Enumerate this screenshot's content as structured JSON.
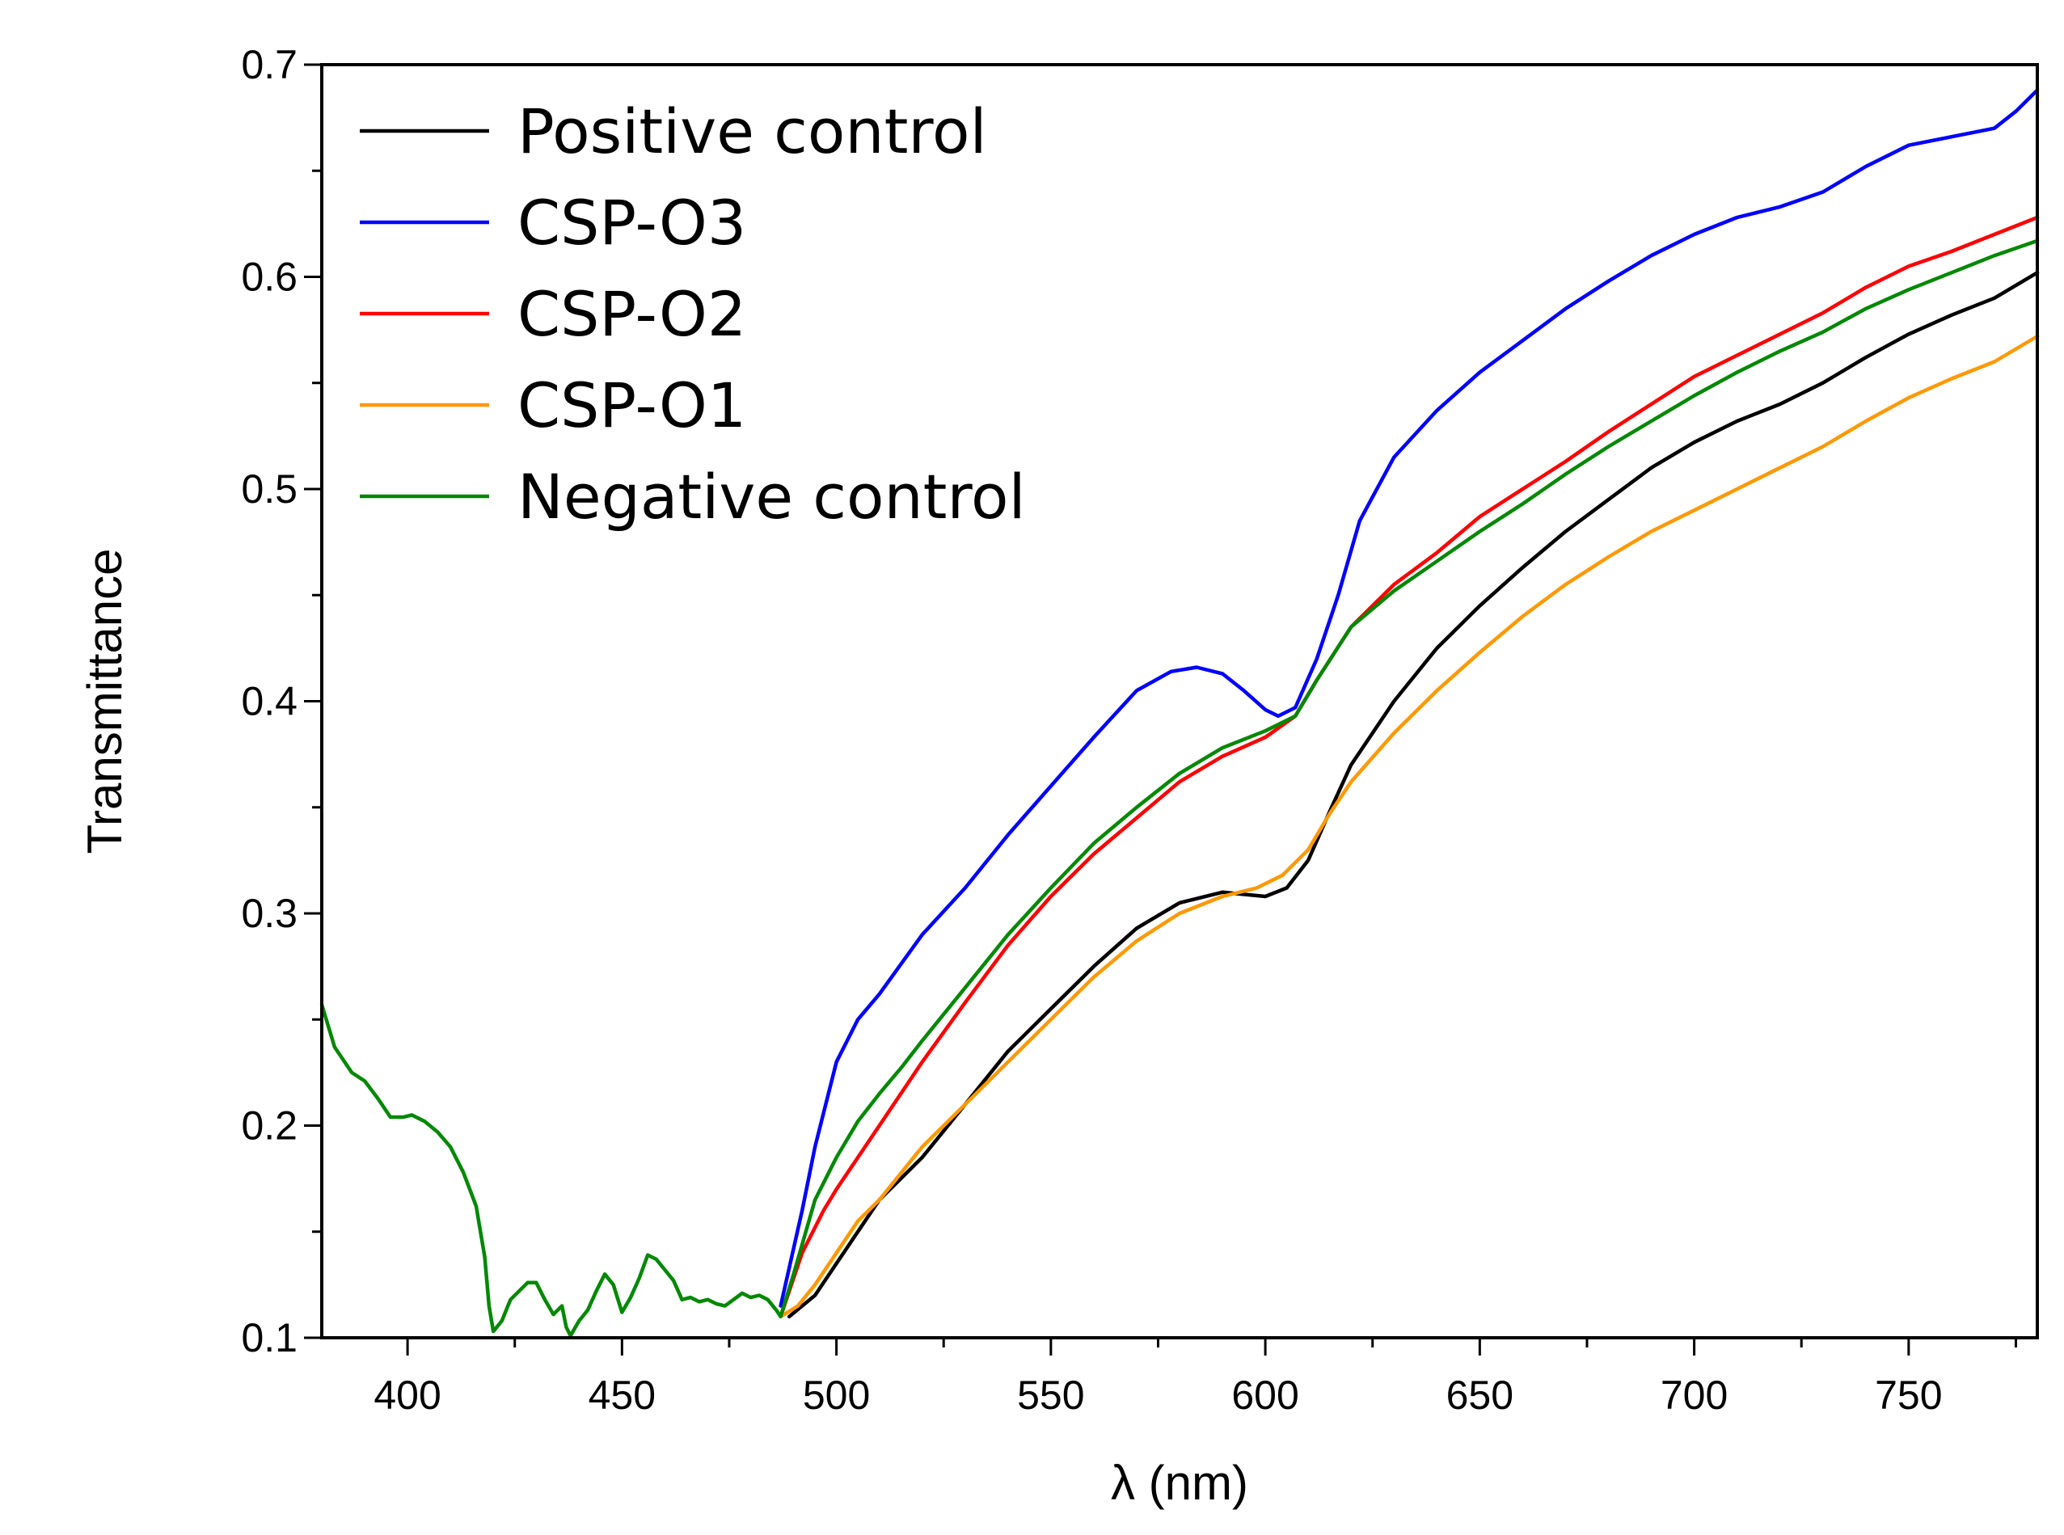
{
  "chart_data": {
    "type": "line",
    "title": "",
    "xlabel": "λ (nm)",
    "ylabel": "Transmittance",
    "xlim": [
      380,
      780
    ],
    "ylim": [
      0.1,
      0.7
    ],
    "xticks": [
      400,
      450,
      500,
      550,
      600,
      650,
      700,
      750
    ],
    "yticks": [
      0.1,
      0.2,
      0.3,
      0.4,
      0.5,
      0.6,
      0.7
    ],
    "grid": false,
    "legend_position": "top-left",
    "series": [
      {
        "name": "Positive control",
        "color": "#000000",
        "points": [
          [
            489,
            0.11
          ],
          [
            495,
            0.12
          ],
          [
            500,
            0.135
          ],
          [
            505,
            0.15
          ],
          [
            510,
            0.165
          ],
          [
            520,
            0.185
          ],
          [
            530,
            0.21
          ],
          [
            540,
            0.235
          ],
          [
            550,
            0.255
          ],
          [
            560,
            0.275
          ],
          [
            570,
            0.293
          ],
          [
            580,
            0.305
          ],
          [
            590,
            0.31
          ],
          [
            600,
            0.308
          ],
          [
            605,
            0.312
          ],
          [
            610,
            0.325
          ],
          [
            615,
            0.348
          ],
          [
            620,
            0.37
          ],
          [
            630,
            0.4
          ],
          [
            640,
            0.425
          ],
          [
            650,
            0.445
          ],
          [
            660,
            0.463
          ],
          [
            670,
            0.48
          ],
          [
            680,
            0.495
          ],
          [
            690,
            0.51
          ],
          [
            700,
            0.522
          ],
          [
            710,
            0.532
          ],
          [
            720,
            0.54
          ],
          [
            730,
            0.55
          ],
          [
            740,
            0.562
          ],
          [
            750,
            0.573
          ],
          [
            760,
            0.582
          ],
          [
            770,
            0.59
          ],
          [
            780,
            0.602
          ]
        ]
      },
      {
        "name": "CSP-O3",
        "color": "#0000ff",
        "points": [
          [
            487,
            0.115
          ],
          [
            492,
            0.16
          ],
          [
            495,
            0.19
          ],
          [
            500,
            0.23
          ],
          [
            505,
            0.25
          ],
          [
            510,
            0.262
          ],
          [
            520,
            0.29
          ],
          [
            530,
            0.312
          ],
          [
            540,
            0.337
          ],
          [
            550,
            0.36
          ],
          [
            560,
            0.383
          ],
          [
            570,
            0.405
          ],
          [
            578,
            0.414
          ],
          [
            584,
            0.416
          ],
          [
            590,
            0.413
          ],
          [
            595,
            0.405
          ],
          [
            600,
            0.396
          ],
          [
            603,
            0.393
          ],
          [
            607,
            0.397
          ],
          [
            612,
            0.42
          ],
          [
            617,
            0.45
          ],
          [
            622,
            0.485
          ],
          [
            630,
            0.515
          ],
          [
            640,
            0.537
          ],
          [
            650,
            0.555
          ],
          [
            660,
            0.57
          ],
          [
            670,
            0.585
          ],
          [
            680,
            0.598
          ],
          [
            690,
            0.61
          ],
          [
            700,
            0.62
          ],
          [
            710,
            0.628
          ],
          [
            720,
            0.633
          ],
          [
            730,
            0.64
          ],
          [
            740,
            0.652
          ],
          [
            750,
            0.662
          ],
          [
            760,
            0.666
          ],
          [
            770,
            0.67
          ],
          [
            775,
            0.678
          ],
          [
            780,
            0.688
          ]
        ]
      },
      {
        "name": "CSP-O2",
        "color": "#ff0000",
        "points": [
          [
            487,
            0.11
          ],
          [
            492,
            0.14
          ],
          [
            497,
            0.16
          ],
          [
            500,
            0.17
          ],
          [
            510,
            0.2
          ],
          [
            520,
            0.23
          ],
          [
            530,
            0.258
          ],
          [
            540,
            0.285
          ],
          [
            550,
            0.308
          ],
          [
            560,
            0.328
          ],
          [
            570,
            0.345
          ],
          [
            580,
            0.362
          ],
          [
            590,
            0.374
          ],
          [
            600,
            0.383
          ],
          [
            607,
            0.393
          ],
          [
            612,
            0.41
          ],
          [
            620,
            0.435
          ],
          [
            630,
            0.455
          ],
          [
            640,
            0.47
          ],
          [
            650,
            0.487
          ],
          [
            660,
            0.5
          ],
          [
            670,
            0.513
          ],
          [
            680,
            0.527
          ],
          [
            690,
            0.54
          ],
          [
            700,
            0.553
          ],
          [
            710,
            0.563
          ],
          [
            720,
            0.573
          ],
          [
            730,
            0.583
          ],
          [
            740,
            0.595
          ],
          [
            750,
            0.605
          ],
          [
            760,
            0.612
          ],
          [
            770,
            0.62
          ],
          [
            780,
            0.628
          ]
        ]
      },
      {
        "name": "CSP-O1",
        "color": "#ff9900",
        "points": [
          [
            487,
            0.11
          ],
          [
            491,
            0.115
          ],
          [
            495,
            0.125
          ],
          [
            500,
            0.14
          ],
          [
            505,
            0.155
          ],
          [
            510,
            0.165
          ],
          [
            520,
            0.19
          ],
          [
            530,
            0.21
          ],
          [
            540,
            0.23
          ],
          [
            550,
            0.25
          ],
          [
            560,
            0.27
          ],
          [
            570,
            0.287
          ],
          [
            580,
            0.3
          ],
          [
            590,
            0.308
          ],
          [
            598,
            0.312
          ],
          [
            604,
            0.318
          ],
          [
            610,
            0.33
          ],
          [
            615,
            0.347
          ],
          [
            620,
            0.362
          ],
          [
            630,
            0.385
          ],
          [
            640,
            0.405
          ],
          [
            650,
            0.423
          ],
          [
            660,
            0.44
          ],
          [
            670,
            0.455
          ],
          [
            680,
            0.468
          ],
          [
            690,
            0.48
          ],
          [
            700,
            0.49
          ],
          [
            710,
            0.5
          ],
          [
            720,
            0.51
          ],
          [
            730,
            0.52
          ],
          [
            740,
            0.532
          ],
          [
            750,
            0.543
          ],
          [
            760,
            0.552
          ],
          [
            770,
            0.56
          ],
          [
            780,
            0.572
          ]
        ]
      },
      {
        "name": "Negative control",
        "color": "#008800",
        "points": [
          [
            380,
            0.257
          ],
          [
            383,
            0.237
          ],
          [
            387,
            0.225
          ],
          [
            390,
            0.221
          ],
          [
            393,
            0.213
          ],
          [
            396,
            0.204
          ],
          [
            399,
            0.204
          ],
          [
            401,
            0.205
          ],
          [
            404,
            0.202
          ],
          [
            407,
            0.197
          ],
          [
            410,
            0.19
          ],
          [
            413,
            0.178
          ],
          [
            416,
            0.162
          ],
          [
            418,
            0.138
          ],
          [
            419,
            0.115
          ],
          [
            420,
            0.103
          ],
          [
            422,
            0.108
          ],
          [
            424,
            0.118
          ],
          [
            426,
            0.122
          ],
          [
            428,
            0.126
          ],
          [
            430,
            0.126
          ],
          [
            432,
            0.118
          ],
          [
            434,
            0.111
          ],
          [
            436,
            0.115
          ],
          [
            437,
            0.105
          ],
          [
            438,
            0.101
          ],
          [
            440,
            0.108
          ],
          [
            442,
            0.113
          ],
          [
            444,
            0.122
          ],
          [
            446,
            0.13
          ],
          [
            448,
            0.125
          ],
          [
            450,
            0.112
          ],
          [
            452,
            0.119
          ],
          [
            454,
            0.128
          ],
          [
            456,
            0.139
          ],
          [
            458,
            0.137
          ],
          [
            460,
            0.132
          ],
          [
            462,
            0.127
          ],
          [
            464,
            0.118
          ],
          [
            466,
            0.119
          ],
          [
            468,
            0.117
          ],
          [
            470,
            0.118
          ],
          [
            472,
            0.116
          ],
          [
            474,
            0.115
          ],
          [
            476,
            0.118
          ],
          [
            478,
            0.121
          ],
          [
            480,
            0.119
          ],
          [
            482,
            0.12
          ],
          [
            484,
            0.118
          ],
          [
            486,
            0.113
          ],
          [
            487,
            0.11
          ],
          [
            490,
            0.13
          ],
          [
            495,
            0.165
          ],
          [
            500,
            0.185
          ],
          [
            505,
            0.202
          ],
          [
            510,
            0.215
          ],
          [
            515,
            0.227
          ],
          [
            520,
            0.24
          ],
          [
            530,
            0.265
          ],
          [
            540,
            0.29
          ],
          [
            550,
            0.312
          ],
          [
            560,
            0.333
          ],
          [
            570,
            0.35
          ],
          [
            580,
            0.366
          ],
          [
            590,
            0.378
          ],
          [
            600,
            0.386
          ],
          [
            607,
            0.393
          ],
          [
            612,
            0.41
          ],
          [
            620,
            0.435
          ],
          [
            630,
            0.452
          ],
          [
            640,
            0.466
          ],
          [
            650,
            0.48
          ],
          [
            660,
            0.493
          ],
          [
            670,
            0.507
          ],
          [
            680,
            0.52
          ],
          [
            690,
            0.532
          ],
          [
            700,
            0.544
          ],
          [
            710,
            0.555
          ],
          [
            720,
            0.565
          ],
          [
            730,
            0.574
          ],
          [
            740,
            0.585
          ],
          [
            750,
            0.594
          ],
          [
            760,
            0.602
          ],
          [
            770,
            0.61
          ],
          [
            780,
            0.617
          ]
        ]
      }
    ]
  }
}
